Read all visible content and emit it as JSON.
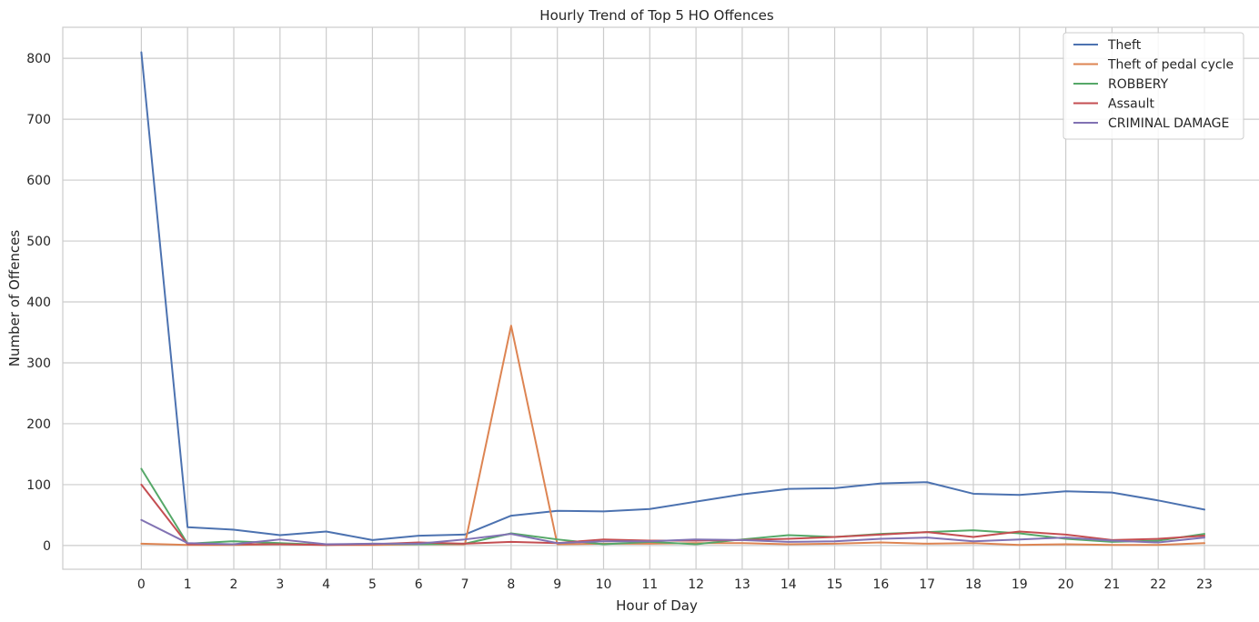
{
  "chart_data": {
    "type": "line",
    "title": "Hourly Trend of Top 5 HO Offences",
    "xlabel": "Hour of Day",
    "ylabel": "Number of Offences",
    "x": [
      0,
      1,
      2,
      3,
      4,
      5,
      6,
      7,
      8,
      9,
      10,
      11,
      12,
      13,
      14,
      15,
      16,
      17,
      18,
      19,
      20,
      21,
      22,
      23
    ],
    "xticks": [
      "0",
      "1",
      "2",
      "3",
      "4",
      "5",
      "6",
      "7",
      "8",
      "9",
      "10",
      "11",
      "12",
      "13",
      "14",
      "15",
      "16",
      "17",
      "18",
      "19",
      "20",
      "21",
      "22",
      "23"
    ],
    "yticks": [
      "0",
      "100",
      "200",
      "300",
      "400",
      "500",
      "600",
      "700",
      "800"
    ],
    "ytick_values": [
      0,
      100,
      200,
      300,
      400,
      500,
      600,
      700,
      800
    ],
    "xlim": [
      -1.7,
      24.2
    ],
    "ylim": [
      -39,
      851
    ],
    "grid": true,
    "legend_position": "top-right",
    "series": [
      {
        "name": "Theft",
        "color": "#4c72b0",
        "values": [
          810,
          30,
          26,
          17,
          23,
          9,
          16,
          18,
          49,
          57,
          56,
          60,
          72,
          84,
          93,
          94,
          102,
          104,
          85,
          83,
          89,
          87,
          74,
          59
        ]
      },
      {
        "name": "Theft of pedal cycle",
        "color": "#dd8452",
        "values": [
          3,
          1,
          1,
          2,
          1,
          1,
          2,
          2,
          361,
          2,
          3,
          3,
          4,
          4,
          2,
          3,
          5,
          3,
          4,
          1,
          2,
          1,
          1,
          4
        ]
      },
      {
        "name": "ROBBERY",
        "color": "#55a868",
        "values": [
          126,
          3,
          7,
          4,
          1,
          3,
          2,
          3,
          20,
          10,
          2,
          6,
          2,
          10,
          17,
          14,
          19,
          22,
          25,
          20,
          11,
          6,
          8,
          19
        ]
      },
      {
        "name": "Assault",
        "color": "#c44e52",
        "values": [
          100,
          2,
          2,
          2,
          1,
          2,
          5,
          3,
          6,
          4,
          10,
          8,
          8,
          9,
          11,
          14,
          18,
          22,
          14,
          23,
          18,
          9,
          11,
          16
        ]
      },
      {
        "name": "CRIMINAL DAMAGE",
        "color": "#8172b3",
        "values": [
          42,
          4,
          2,
          10,
          2,
          3,
          3,
          10,
          19,
          4,
          7,
          7,
          10,
          9,
          6,
          7,
          11,
          13,
          7,
          10,
          13,
          8,
          5,
          13
        ]
      }
    ]
  }
}
